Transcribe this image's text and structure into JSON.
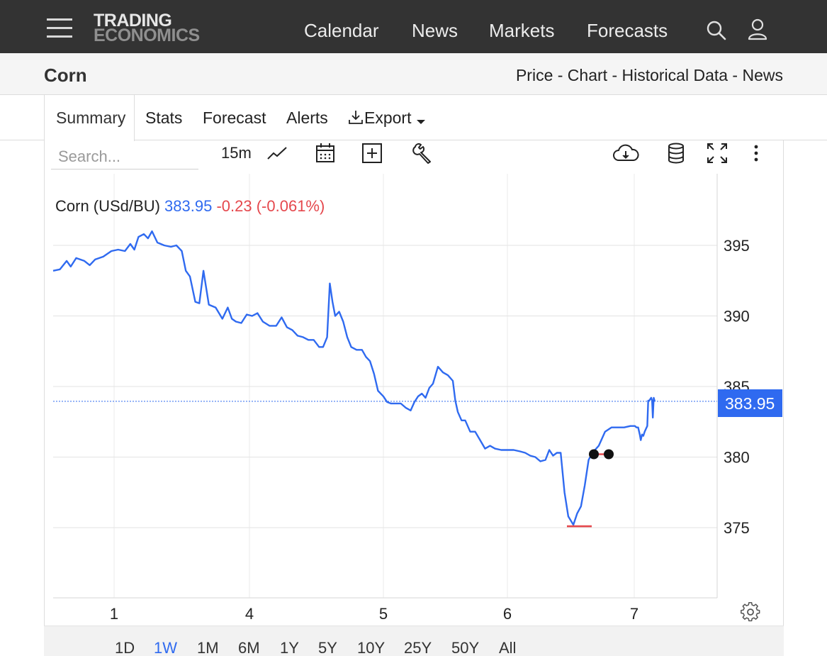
{
  "nav": {
    "logo_line1": "TRADING",
    "logo_line2": "ECONOMICS",
    "links": [
      "Calendar",
      "News",
      "Markets",
      "Forecasts"
    ]
  },
  "header": {
    "title": "Corn",
    "subtitle": "Price - Chart - Historical Data - News"
  },
  "tabs": {
    "summary": "Summary",
    "stats": "Stats",
    "forecast": "Forecast",
    "alerts": "Alerts",
    "export": "Export"
  },
  "toolbar": {
    "search_placeholder": "Search...",
    "interval": "15m"
  },
  "chart_label": {
    "name": "Corn (USd/BU)",
    "price": "383.95",
    "change": "-0.23 (-0.061%)"
  },
  "range_buttons": [
    "1D",
    "1W",
    "1M",
    "6M",
    "1Y",
    "5Y",
    "10Y",
    "25Y",
    "50Y",
    "All"
  ],
  "active_range": "1W",
  "colors": {
    "line": "#2f6af0",
    "negative": "#e5484d",
    "navbar": "#333333"
  },
  "chart_data": {
    "type": "line",
    "title": "Corn (USd/BU)",
    "last_price": 383.95,
    "last_price_label": "383.95",
    "ylim": [
      370,
      399
    ],
    "yticks": [
      375,
      380,
      385,
      390,
      395
    ],
    "xlim": [
      0.55,
      7.55
    ],
    "xticks": [
      {
        "label": "1",
        "x": 1
      },
      {
        "label": "4",
        "x": 2
      },
      {
        "label": "5",
        "x": 3
      },
      {
        "label": "6",
        "x": 4
      },
      {
        "label": "7",
        "x": 5
      }
    ],
    "grid": true,
    "series": [
      {
        "values": [
          [
            0.55,
            393.2
          ],
          [
            0.6,
            393.3
          ],
          [
            0.65,
            393.9
          ],
          [
            0.68,
            393.5
          ],
          [
            0.72,
            394.1
          ],
          [
            0.78,
            393.9
          ],
          [
            0.82,
            393.6
          ],
          [
            0.86,
            394.0
          ],
          [
            0.92,
            394.2
          ],
          [
            0.98,
            394.6
          ],
          [
            1.03,
            394.7
          ],
          [
            1.08,
            394.6
          ],
          [
            1.12,
            395.1
          ],
          [
            1.15,
            394.7
          ],
          [
            1.18,
            395.6
          ],
          [
            1.22,
            395.8
          ],
          [
            1.25,
            395.5
          ],
          [
            1.28,
            396.0
          ],
          [
            1.32,
            395.2
          ],
          [
            1.37,
            395.0
          ],
          [
            1.42,
            394.9
          ],
          [
            1.46,
            395.0
          ],
          [
            1.5,
            394.6
          ],
          [
            1.53,
            393.2
          ],
          [
            1.56,
            392.8
          ],
          [
            1.6,
            391.0
          ],
          [
            1.63,
            390.9
          ],
          [
            1.66,
            393.2
          ],
          [
            1.7,
            390.8
          ],
          [
            1.75,
            390.6
          ],
          [
            1.8,
            389.8
          ],
          [
            1.84,
            390.6
          ],
          [
            1.87,
            389.8
          ],
          [
            1.9,
            389.6
          ],
          [
            1.94,
            389.5
          ],
          [
            1.98,
            390.1
          ],
          [
            2.02,
            390.0
          ],
          [
            2.06,
            390.2
          ],
          [
            2.1,
            389.6
          ],
          [
            2.15,
            389.3
          ],
          [
            2.2,
            389.3
          ],
          [
            2.24,
            389.9
          ],
          [
            2.28,
            389.2
          ],
          [
            2.32,
            389.0
          ],
          [
            2.36,
            388.6
          ],
          [
            2.4,
            388.5
          ],
          [
            2.44,
            388.3
          ],
          [
            2.48,
            388.3
          ],
          [
            2.52,
            387.8
          ],
          [
            2.55,
            387.8
          ],
          [
            2.58,
            388.5
          ],
          [
            2.6,
            392.3
          ],
          [
            2.62,
            391.0
          ],
          [
            2.64,
            390.0
          ],
          [
            2.67,
            390.3
          ],
          [
            2.7,
            389.6
          ],
          [
            2.73,
            388.5
          ],
          [
            2.76,
            387.8
          ],
          [
            2.8,
            387.6
          ],
          [
            2.84,
            387.6
          ],
          [
            2.87,
            387.1
          ],
          [
            2.9,
            386.8
          ],
          [
            2.93,
            385.9
          ],
          [
            2.96,
            384.7
          ],
          [
            3.0,
            384.3
          ],
          [
            3.03,
            383.9
          ],
          [
            3.06,
            383.8
          ],
          [
            3.1,
            383.8
          ],
          [
            3.14,
            383.8
          ],
          [
            3.18,
            383.5
          ],
          [
            3.22,
            383.3
          ],
          [
            3.25,
            383.9
          ],
          [
            3.28,
            384.3
          ],
          [
            3.31,
            384.5
          ],
          [
            3.34,
            384.2
          ],
          [
            3.37,
            384.9
          ],
          [
            3.4,
            385.2
          ],
          [
            3.44,
            386.4
          ],
          [
            3.48,
            386.0
          ],
          [
            3.52,
            385.8
          ],
          [
            3.56,
            385.4
          ],
          [
            3.58,
            384.0
          ],
          [
            3.6,
            383.2
          ],
          [
            3.63,
            382.6
          ],
          [
            3.66,
            382.6
          ],
          [
            3.7,
            381.8
          ],
          [
            3.74,
            381.8
          ],
          [
            3.78,
            381.2
          ],
          [
            3.82,
            380.6
          ],
          [
            3.86,
            380.8
          ],
          [
            3.9,
            380.6
          ],
          [
            3.95,
            380.5
          ],
          [
            4.0,
            380.5
          ],
          [
            4.05,
            380.5
          ],
          [
            4.1,
            380.4
          ],
          [
            4.14,
            380.3
          ],
          [
            4.18,
            380.1
          ],
          [
            4.22,
            380.0
          ],
          [
            4.26,
            379.7
          ],
          [
            4.3,
            379.8
          ],
          [
            4.33,
            380.5
          ],
          [
            4.36,
            380.1
          ],
          [
            4.39,
            380.3
          ],
          [
            4.42,
            380.3
          ],
          [
            4.45,
            377.5
          ],
          [
            4.48,
            375.8
          ],
          [
            4.52,
            375.2
          ],
          [
            4.55,
            376.0
          ],
          [
            4.58,
            376.5
          ],
          [
            4.61,
            378.0
          ],
          [
            4.64,
            379.8
          ],
          [
            4.67,
            380.3
          ],
          [
            4.72,
            380.8
          ],
          [
            4.77,
            381.8
          ],
          [
            4.82,
            382.1
          ],
          [
            4.87,
            382.1
          ],
          [
            4.92,
            382.1
          ],
          [
            4.97,
            382.2
          ],
          [
            5.02,
            382.2
          ],
          [
            5.07,
            382.1
          ],
          [
            5.12,
            382.1
          ],
          [
            5.17,
            381.6
          ],
          [
            5.2,
            381.2
          ],
          [
            5.24,
            381.6
          ],
          [
            5.28,
            381.5
          ],
          [
            5.32,
            381.8
          ],
          [
            5.36,
            382.0
          ],
          [
            5.4,
            382.2
          ],
          [
            5.43,
            384.0
          ],
          [
            5.46,
            384.0
          ],
          [
            5.49,
            384.1
          ],
          [
            5.52,
            384.2
          ],
          [
            5.55,
            384.0
          ],
          [
            5.57,
            382.8
          ],
          [
            5.6,
            384.2
          ],
          [
            5.63,
            383.95
          ]
        ]
      }
    ],
    "annotations": {
      "low_marker": 375.2,
      "dots": [
        380.0,
        380.0
      ]
    }
  }
}
